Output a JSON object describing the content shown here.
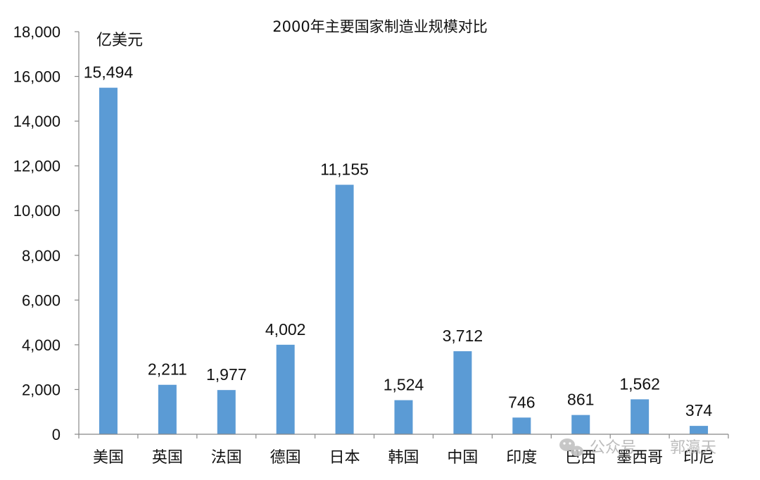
{
  "chart_data": {
    "type": "bar",
    "title": "2000年主要国家制造业规模对比",
    "unit_label": "亿美元",
    "categories": [
      "美国",
      "英国",
      "法国",
      "德国",
      "日本",
      "韩国",
      "中国",
      "印度",
      "巴西",
      "墨西哥",
      "印尼"
    ],
    "values": [
      15494,
      2211,
      1977,
      4002,
      11155,
      1524,
      3712,
      746,
      861,
      1562,
      374
    ],
    "value_labels": [
      "15,494",
      "2,211",
      "1,977",
      "4,002",
      "11,155",
      "1,524",
      "3,712",
      "746",
      "861",
      "1,562",
      "374"
    ],
    "ylim": [
      0,
      18000
    ],
    "yticks": [
      0,
      2000,
      4000,
      6000,
      8000,
      10000,
      12000,
      14000,
      16000,
      18000
    ],
    "ytick_labels": [
      "0",
      "2,000",
      "4,000",
      "6,000",
      "8,000",
      "10,000",
      "12,000",
      "14,000",
      "16,000",
      "18,000"
    ],
    "grid": false,
    "bar_color": "#5b9bd5"
  },
  "watermark": {
    "icon": "wechat-icon",
    "account_label": "公众号",
    "author": "郭瀛天"
  }
}
